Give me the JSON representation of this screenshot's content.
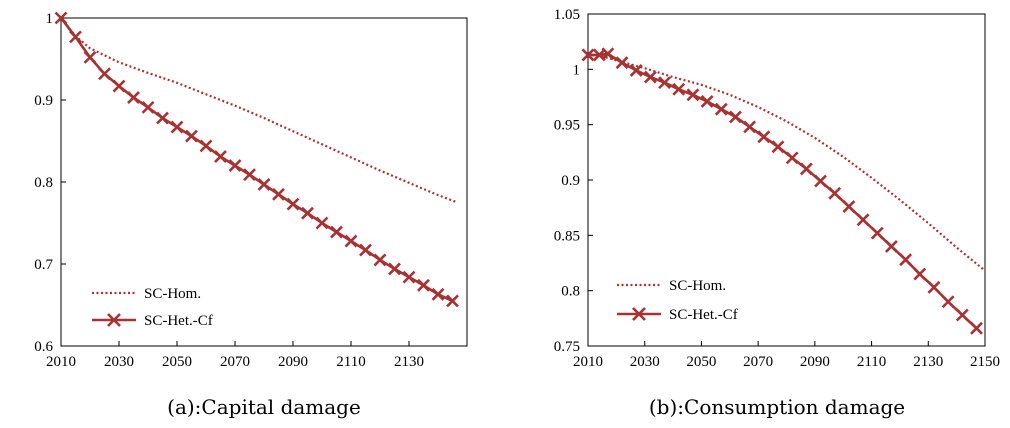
{
  "chart_data": [
    {
      "type": "line",
      "caption": "(a):Capital damage",
      "xlim": [
        2010,
        2150
      ],
      "ylim": [
        0.6,
        1.0
      ],
      "x_ticks": [
        "2010",
        "2030",
        "2050",
        "2070",
        "2090",
        "2110",
        "2130"
      ],
      "y_ticks": [
        "0.6",
        "0.7",
        "0.8",
        "0.9",
        "1"
      ],
      "legend_position": "bottom-left",
      "series": [
        {
          "name": "SC-Hom.",
          "style": "dotted",
          "color": "#b03030",
          "x": [
            2010,
            2015,
            2020,
            2030,
            2040,
            2050,
            2060,
            2070,
            2080,
            2090,
            2100,
            2110,
            2120,
            2130,
            2140,
            2146
          ],
          "y": [
            1.0,
            0.978,
            0.963,
            0.946,
            0.933,
            0.921,
            0.907,
            0.893,
            0.878,
            0.862,
            0.846,
            0.83,
            0.814,
            0.799,
            0.784,
            0.776
          ]
        },
        {
          "name": "SC-Het.-Cf",
          "style": "solid-x",
          "color": "#a83232",
          "x": [
            2010,
            2015,
            2020,
            2025,
            2030,
            2035,
            2040,
            2045,
            2050,
            2055,
            2060,
            2065,
            2070,
            2075,
            2080,
            2085,
            2090,
            2095,
            2100,
            2105,
            2110,
            2115,
            2120,
            2125,
            2130,
            2135,
            2140,
            2145
          ],
          "y": [
            1.0,
            0.977,
            0.952,
            0.932,
            0.917,
            0.903,
            0.891,
            0.878,
            0.867,
            0.856,
            0.844,
            0.831,
            0.82,
            0.809,
            0.797,
            0.785,
            0.773,
            0.762,
            0.75,
            0.739,
            0.728,
            0.717,
            0.705,
            0.694,
            0.684,
            0.674,
            0.663,
            0.655
          ]
        }
      ]
    },
    {
      "type": "line",
      "caption": "(b):Consumption damage",
      "xlim": [
        2010,
        2150
      ],
      "ylim": [
        0.75,
        1.05
      ],
      "x_ticks": [
        "2010",
        "2030",
        "2050",
        "2070",
        "2090",
        "2110",
        "2130",
        "2150"
      ],
      "y_ticks": [
        "0.75",
        "0.8",
        "0.85",
        "0.9",
        "0.95",
        "1",
        "1.05"
      ],
      "legend_position": "bottom-left",
      "series": [
        {
          "name": "SC-Hom.",
          "style": "dotted",
          "color": "#b03030",
          "x": [
            2010,
            2015,
            2020,
            2030,
            2040,
            2050,
            2060,
            2070,
            2080,
            2090,
            2100,
            2110,
            2120,
            2130,
            2140,
            2150
          ],
          "y": [
            1.013,
            1.012,
            1.008,
            1.001,
            0.993,
            0.986,
            0.977,
            0.966,
            0.953,
            0.938,
            0.921,
            0.902,
            0.882,
            0.861,
            0.839,
            0.818
          ]
        },
        {
          "name": "SC-Het.-Cf",
          "style": "solid-x",
          "color": "#a83232",
          "x": [
            2010,
            2014,
            2017,
            2022,
            2027,
            2032,
            2037,
            2042,
            2047,
            2052,
            2057,
            2062,
            2067,
            2072,
            2077,
            2082,
            2087,
            2092,
            2097,
            2102,
            2107,
            2112,
            2117,
            2122,
            2127,
            2132,
            2137,
            2142,
            2147
          ],
          "y": [
            1.013,
            1.013,
            1.014,
            1.006,
            0.999,
            0.993,
            0.988,
            0.982,
            0.977,
            0.971,
            0.964,
            0.957,
            0.948,
            0.939,
            0.93,
            0.92,
            0.91,
            0.899,
            0.888,
            0.876,
            0.864,
            0.852,
            0.84,
            0.828,
            0.815,
            0.803,
            0.79,
            0.778,
            0.766
          ]
        }
      ]
    }
  ]
}
